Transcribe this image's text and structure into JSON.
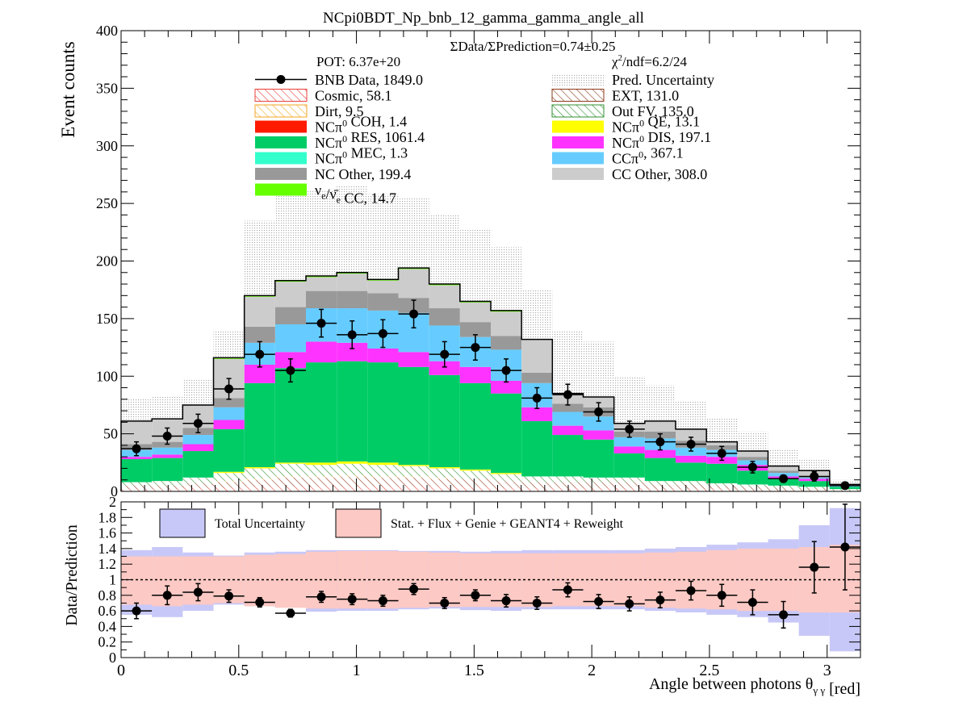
{
  "chart_data": [
    {
      "type": "bar",
      "stacked": true,
      "title": "NCpi0BDT_Np_bnb_12_gamma_gamma_angle_all",
      "ylabel": "Event counts",
      "ylim": [
        0,
        400
      ],
      "xlim": [
        0,
        3.14159
      ],
      "yticks": [
        "0",
        "50",
        "100",
        "150",
        "200",
        "250",
        "300",
        "350",
        "400"
      ],
      "info": {
        "ratio_text": "ΣData/ΣPrediction=0.74±0.25",
        "pot": "POT: 6.37e+20",
        "chi2_prefix": "χ",
        "chi2_sup": "2",
        "chi2_rest": "/ndf=6.2/24"
      },
      "legend": [
        {
          "key": "data",
          "parts": [
            {
              "t": "BNB Data, 1849.0"
            }
          ],
          "style": "marker"
        },
        {
          "key": "unc",
          "parts": [
            {
              "t": "Pred. Uncertainty"
            }
          ],
          "style": "dots",
          "color": "#bdbdbd"
        },
        {
          "key": "cosmic",
          "parts": [
            {
              "t": "Cosmic, 58.1"
            }
          ],
          "style": "hatch-red",
          "color": "#e8403a"
        },
        {
          "key": "ext",
          "parts": [
            {
              "t": "EXT, 131.0"
            }
          ],
          "style": "hatch-brown",
          "color": "#8b3a1a"
        },
        {
          "key": "dirt",
          "parts": [
            {
              "t": "Dirt, 9.5"
            }
          ],
          "style": "hatch-orange",
          "color": "#f5a623"
        },
        {
          "key": "outfv",
          "parts": [
            {
              "t": "Out FV, 135.0"
            }
          ],
          "style": "hatch-green",
          "color": "#2f8f2f"
        },
        {
          "key": "coh",
          "parts": [
            {
              "t": "NCπ"
            },
            {
              "t": "0",
              "sup": true
            },
            {
              "t": " COH,  1.4"
            }
          ],
          "style": "fill",
          "color": "#ff1a00"
        },
        {
          "key": "qe",
          "parts": [
            {
              "t": "NCπ"
            },
            {
              "t": "0",
              "sup": true
            },
            {
              "t": " QE,  13.1"
            }
          ],
          "style": "fill",
          "color": "#ffff00"
        },
        {
          "key": "res",
          "parts": [
            {
              "t": "NCπ"
            },
            {
              "t": "0",
              "sup": true
            },
            {
              "t": " RES,  1061.4"
            }
          ],
          "style": "fill",
          "color": "#00cc66"
        },
        {
          "key": "dis",
          "parts": [
            {
              "t": "NCπ"
            },
            {
              "t": "0",
              "sup": true
            },
            {
              "t": " DIS,  197.1"
            }
          ],
          "style": "fill",
          "color": "#ff33ff"
        },
        {
          "key": "mec",
          "parts": [
            {
              "t": "NCπ"
            },
            {
              "t": "0",
              "sup": true
            },
            {
              "t": " MEC,  1.3"
            }
          ],
          "style": "fill",
          "color": "#33ffcc"
        },
        {
          "key": "ccpi0",
          "parts": [
            {
              "t": "CCπ"
            },
            {
              "t": "0",
              "sup": true
            },
            {
              "t": ", 367.1"
            }
          ],
          "style": "fill",
          "color": "#66ccff"
        },
        {
          "key": "ncother",
          "parts": [
            {
              "t": "NC Other, 199.4"
            }
          ],
          "style": "fill",
          "color": "#999999"
        },
        {
          "key": "ccother",
          "parts": [
            {
              "t": "CC Other, 308.0"
            }
          ],
          "style": "fill",
          "color": "#cccccc"
        },
        {
          "key": "nue",
          "parts": [
            {
              "t": "ν"
            },
            {
              "t": "e",
              "sub": true
            },
            {
              "t": "/ν̄"
            },
            {
              "t": "e",
              "sub": true
            },
            {
              "t": " CC, 14.7"
            }
          ],
          "style": "fill",
          "color": "#66ff00"
        }
      ],
      "bin_edges": [
        0,
        0.1309,
        0.2618,
        0.3927,
        0.5236,
        0.6545,
        0.7854,
        0.9163,
        1.0472,
        1.1781,
        1.309,
        1.4399,
        1.5708,
        1.7017,
        1.8326,
        1.9635,
        2.0944,
        2.2253,
        2.3562,
        2.4871,
        2.618,
        2.7489,
        2.8798,
        3.0107,
        3.1416
      ],
      "series": [
        {
          "key": "cosmic",
          "name": "Cosmic",
          "values": [
            2,
            2,
            3,
            3,
            4,
            4,
            4,
            4,
            4,
            4,
            4,
            4,
            3,
            3,
            3,
            3,
            3,
            2,
            2,
            2,
            1,
            1,
            1,
            0
          ]
        },
        {
          "key": "ext",
          "name": "EXT",
          "values": [
            3,
            3,
            4,
            5,
            6,
            8,
            8,
            9,
            8,
            8,
            7,
            7,
            6,
            5,
            5,
            5,
            5,
            4,
            4,
            3,
            3,
            2,
            2,
            1
          ]
        },
        {
          "key": "dirt",
          "name": "Dirt",
          "values": [
            0,
            0,
            0,
            1,
            1,
            1,
            1,
            1,
            1,
            1,
            1,
            0,
            0,
            0,
            0,
            0,
            0,
            0,
            0,
            0,
            0,
            0,
            0,
            0
          ]
        },
        {
          "key": "outfv",
          "name": "Out FV",
          "values": [
            3,
            4,
            5,
            7,
            9,
            11,
            10,
            10,
            10,
            9,
            8,
            7,
            6,
            5,
            5,
            4,
            4,
            3,
            3,
            2,
            2,
            2,
            1,
            1
          ]
        },
        {
          "key": "coh",
          "name": "NCpi0 COH",
          "values": [
            0,
            0,
            0,
            0,
            0,
            0,
            0,
            0,
            0,
            0,
            0,
            0,
            0,
            0,
            0,
            0,
            0,
            0,
            0,
            0,
            0,
            0,
            0,
            0
          ]
        },
        {
          "key": "qe",
          "name": "NCpi0 QE",
          "values": [
            0,
            0,
            0,
            1,
            1,
            1,
            2,
            2,
            2,
            1,
            1,
            1,
            1,
            0,
            0,
            0,
            0,
            0,
            0,
            0,
            0,
            0,
            0,
            0
          ]
        },
        {
          "key": "res",
          "name": "NCpi0 RES",
          "values": [
            20,
            20,
            23,
            37,
            73,
            82,
            87,
            87,
            87,
            85,
            80,
            75,
            69,
            48,
            36,
            33,
            21,
            20,
            16,
            17,
            12,
            6,
            5,
            2
          ]
        },
        {
          "key": "dis",
          "name": "NCpi0 DIS",
          "values": [
            2,
            3,
            6,
            8,
            16,
            14,
            18,
            16,
            12,
            13,
            12,
            14,
            11,
            12,
            8,
            8,
            6,
            7,
            6,
            6,
            5,
            2,
            2,
            0
          ]
        },
        {
          "key": "mec",
          "name": "NCpi0 MEC",
          "values": [
            0,
            0,
            0,
            0,
            0,
            0,
            0,
            0,
            0,
            0,
            0,
            0,
            0,
            0,
            0,
            0,
            0,
            0,
            0,
            0,
            0,
            0,
            0,
            0
          ]
        },
        {
          "key": "ccpi0",
          "name": "CCpi0",
          "values": [
            6,
            6,
            8,
            11,
            19,
            24,
            29,
            30,
            33,
            34,
            31,
            26,
            27,
            21,
            12,
            12,
            8,
            10,
            7,
            6,
            4,
            3,
            1,
            1
          ]
        },
        {
          "key": "ncother",
          "name": "NC Other",
          "values": [
            5,
            5,
            6,
            8,
            14,
            15,
            15,
            15,
            15,
            13,
            15,
            13,
            12,
            9,
            7,
            8,
            5,
            6,
            6,
            4,
            3,
            2,
            1,
            0
          ]
        },
        {
          "key": "ccother",
          "name": "CC Other",
          "values": [
            20,
            20,
            20,
            34,
            26,
            22,
            12,
            15,
            11,
            25,
            20,
            17,
            21,
            29,
            9,
            9,
            7,
            9,
            10,
            3,
            5,
            4,
            5,
            1
          ]
        },
        {
          "key": "nue",
          "name": "nue/nuebar CC",
          "values": [
            0,
            0,
            0,
            1,
            1,
            1,
            1,
            1,
            1,
            1,
            1,
            1,
            1,
            0,
            0,
            0,
            0,
            0,
            0,
            0,
            0,
            0,
            0,
            0
          ]
        }
      ],
      "uncertainty_upper": [
        80,
        82,
        98,
        140,
        235,
        260,
        262,
        265,
        258,
        255,
        240,
        228,
        212,
        175,
        140,
        130,
        100,
        92,
        78,
        64,
        52,
        36,
        28,
        10
      ],
      "data_points": {
        "name": "BNB Data",
        "x": [
          0.0654,
          0.1963,
          0.3272,
          0.4581,
          0.589,
          0.7199,
          0.8508,
          0.9817,
          1.1126,
          1.2435,
          1.3744,
          1.5053,
          1.6362,
          1.7671,
          1.898,
          2.0289,
          2.1598,
          2.2907,
          2.4216,
          2.5525,
          2.6834,
          2.8143,
          2.9452,
          3.0761
        ],
        "y": [
          37,
          48,
          59,
          89,
          119,
          105,
          146,
          136,
          137,
          154,
          119,
          125,
          105,
          81,
          84,
          69,
          54,
          43,
          41,
          33,
          21,
          11,
          13,
          5
        ],
        "yerr": [
          6,
          7,
          8,
          9,
          11,
          10,
          12,
          12,
          12,
          12,
          11,
          11,
          10,
          9,
          9,
          8,
          7,
          7,
          6,
          6,
          5,
          3,
          4,
          2
        ]
      }
    },
    {
      "type": "scatter",
      "ylabel": "Data/Prediction",
      "xlabel_parts": [
        {
          "t": "Angle between photons θ"
        },
        {
          "t": "γ γ",
          "sub": true
        },
        {
          "t": " [red]"
        }
      ],
      "ylim": [
        0,
        2
      ],
      "xlim": [
        0,
        3.14159
      ],
      "xticks": [
        "0",
        "0.5",
        "1",
        "1.5",
        "2",
        "2.5",
        "3"
      ],
      "yticks": [
        "0",
        "0.2",
        "0.4",
        "0.6",
        "0.8",
        "1",
        "1.2",
        "1.4",
        "1.6",
        "1.8",
        "2"
      ],
      "legend": [
        {
          "key": "total",
          "label": "Total Uncertainty",
          "color": "#c8c8f8"
        },
        {
          "key": "stat",
          "label": "Stat. + Flux + Genie + GEANT4 + Reweight",
          "color": "#fcc9c4"
        }
      ],
      "reference_line": 1,
      "total_band": {
        "low": [
          0.55,
          0.52,
          0.6,
          0.68,
          0.66,
          0.65,
          0.59,
          0.6,
          0.6,
          0.62,
          0.63,
          0.61,
          0.6,
          0.62,
          0.62,
          0.62,
          0.62,
          0.6,
          0.58,
          0.55,
          0.52,
          0.45,
          0.28,
          0.08
        ],
        "high": [
          1.38,
          1.42,
          1.35,
          1.31,
          1.35,
          1.36,
          1.38,
          1.38,
          1.38,
          1.37,
          1.37,
          1.36,
          1.37,
          1.38,
          1.38,
          1.38,
          1.38,
          1.4,
          1.42,
          1.45,
          1.48,
          1.52,
          1.7,
          1.92
        ]
      },
      "stat_band": {
        "low": [
          0.68,
          0.66,
          0.68,
          0.7,
          0.66,
          0.64,
          0.63,
          0.63,
          0.63,
          0.64,
          0.65,
          0.65,
          0.65,
          0.65,
          0.66,
          0.66,
          0.66,
          0.64,
          0.63,
          0.62,
          0.6,
          0.6,
          0.58,
          0.58
        ],
        "high": [
          1.3,
          1.3,
          1.3,
          1.3,
          1.32,
          1.33,
          1.36,
          1.37,
          1.37,
          1.36,
          1.35,
          1.34,
          1.34,
          1.34,
          1.34,
          1.34,
          1.34,
          1.35,
          1.36,
          1.38,
          1.4,
          1.4,
          1.42,
          1.45
        ]
      },
      "ratio": {
        "y": [
          0.6,
          0.8,
          0.84,
          0.79,
          0.71,
          0.57,
          0.78,
          0.75,
          0.73,
          0.88,
          0.7,
          0.8,
          0.73,
          0.7,
          0.87,
          0.72,
          0.69,
          0.74,
          0.86,
          0.8,
          0.71,
          0.55,
          1.16,
          1.42
        ],
        "yerr": [
          0.1,
          0.12,
          0.11,
          0.08,
          0.06,
          0.05,
          0.07,
          0.07,
          0.07,
          0.07,
          0.07,
          0.07,
          0.08,
          0.08,
          0.09,
          0.09,
          0.09,
          0.1,
          0.12,
          0.14,
          0.16,
          0.17,
          0.33,
          0.55
        ]
      }
    }
  ]
}
